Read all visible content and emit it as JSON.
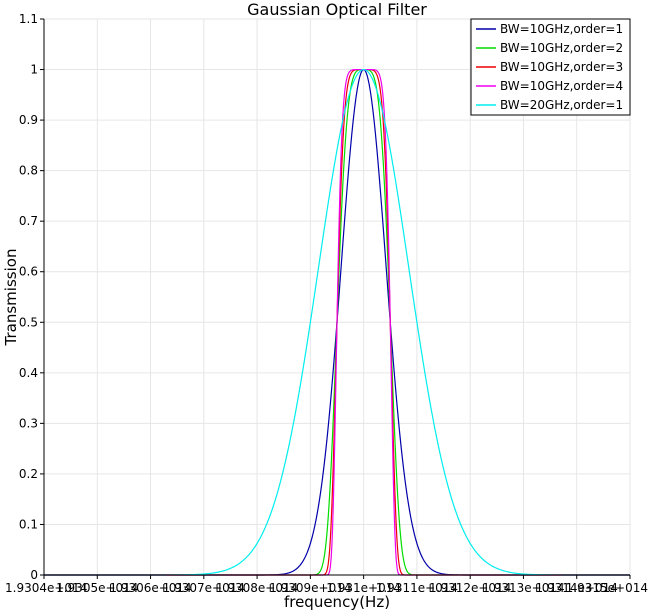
{
  "chart_data": {
    "type": "line",
    "title": "Gaussian Optical Filter",
    "xlabel": "frequency(Hz)",
    "ylabel": "Transmission",
    "xlim": [
      193040000000000,
      193150000000000
    ],
    "ylim": [
      0,
      1.1
    ],
    "grid": true,
    "legend_position": "top-right",
    "x_ticks": [
      {
        "value": 193040000000000,
        "label": "1.9304e+014"
      },
      {
        "value": 193050000000000,
        "label": "1.9305e+014"
      },
      {
        "value": 193060000000000,
        "label": "1.9306e+014"
      },
      {
        "value": 193070000000000,
        "label": "1.9307e+014"
      },
      {
        "value": 193080000000000,
        "label": "1.9308e+014"
      },
      {
        "value": 193090000000000,
        "label": "1.9309e+014"
      },
      {
        "value": 193100000000000,
        "label": "1.931e+014"
      },
      {
        "value": 193110000000000,
        "label": "1.9311e+014"
      },
      {
        "value": 193120000000000,
        "label": "1.9312e+014"
      },
      {
        "value": 193130000000000,
        "label": "1.9313e+014"
      },
      {
        "value": 193140000000000,
        "label": "1.9314e+014"
      },
      {
        "value": 193150000000000,
        "label": "1.9315e+014"
      }
    ],
    "y_ticks": [
      {
        "value": 0,
        "label": "0"
      },
      {
        "value": 0.1,
        "label": "0.1"
      },
      {
        "value": 0.2,
        "label": "0.2"
      },
      {
        "value": 0.3,
        "label": "0.3"
      },
      {
        "value": 0.4,
        "label": "0.4"
      },
      {
        "value": 0.5,
        "label": "0.5"
      },
      {
        "value": 0.6,
        "label": "0.6"
      },
      {
        "value": 0.7,
        "label": "0.7"
      },
      {
        "value": 0.8,
        "label": "0.8"
      },
      {
        "value": 0.9,
        "label": "0.9"
      },
      {
        "value": 1,
        "label": "1"
      },
      {
        "value": 1.1,
        "label": "1.1"
      }
    ],
    "series": [
      {
        "name": "BW=10GHz,order=1",
        "color": "#0000aa",
        "center": 193100000000000,
        "bandwidth": 10000000000,
        "order": 1
      },
      {
        "name": "BW=10GHz,order=2",
        "color": "#00dd00",
        "center": 193100000000000,
        "bandwidth": 10000000000,
        "order": 2
      },
      {
        "name": "BW=10GHz,order=3",
        "color": "#ee0000",
        "center": 193100000000000,
        "bandwidth": 10000000000,
        "order": 3
      },
      {
        "name": "BW=10GHz,order=4",
        "color": "#ee00ee",
        "center": 193100000000000,
        "bandwidth": 10000000000,
        "order": 4
      },
      {
        "name": "BW=20GHz,order=1",
        "color": "#00eeee",
        "center": 193100000000000,
        "bandwidth": 20000000000,
        "order": 1
      }
    ]
  }
}
